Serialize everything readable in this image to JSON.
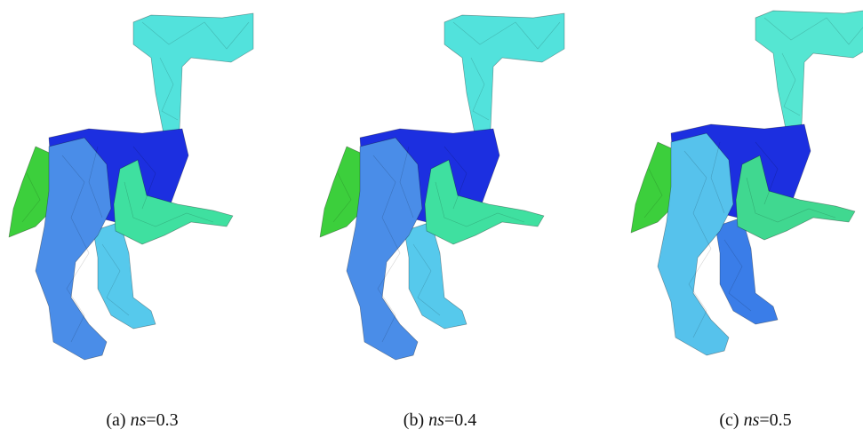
{
  "figure": {
    "panels": [
      {
        "label": "(a)",
        "variable": "ns",
        "value": "=0.3"
      },
      {
        "label": "(b)",
        "variable": "ns",
        "value": "=0.4"
      },
      {
        "label": "(c)",
        "variable": "ns",
        "value": "=0.5"
      }
    ]
  }
}
